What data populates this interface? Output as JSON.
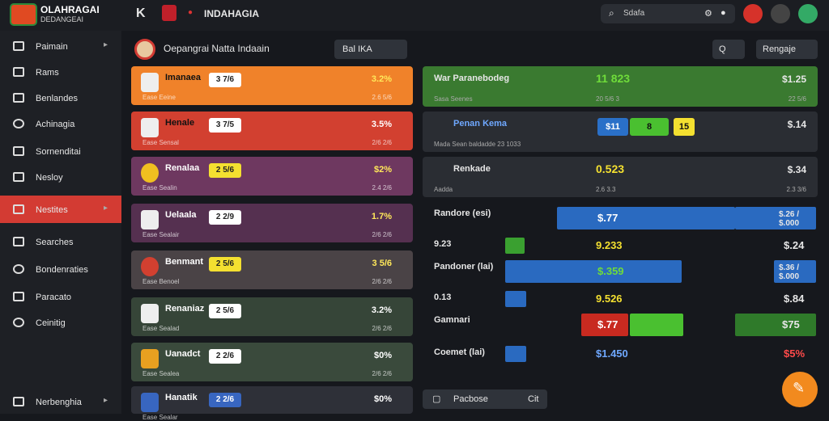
{
  "app": {
    "logo_title": "OLAHRAGAI",
    "logo_sub": "DEDANGEAI"
  },
  "topbar": {
    "back": "K",
    "title": "INDAHAGIA",
    "search_text": "Sdafa"
  },
  "sidebar": {
    "items": [
      {
        "label": "Paimain"
      },
      {
        "label": "Rams"
      },
      {
        "label": "Benlandes"
      },
      {
        "label": "Achinagia"
      },
      {
        "label": "Sornenditai"
      },
      {
        "label": "Nesloy"
      },
      {
        "label": "Nestites"
      },
      {
        "label": "Searches"
      },
      {
        "label": "Bondenraties"
      },
      {
        "label": "Paracato"
      },
      {
        "label": "Ceinitig"
      },
      {
        "label": "Nerbenghia"
      }
    ]
  },
  "header": {
    "title": "Oepangrai Natta Indaain",
    "btn": "Bal  IKA",
    "zoom": "Q",
    "save": "Rengaje"
  },
  "matches": [
    {
      "team": "Imanaea",
      "odd": "3 7/6",
      "val": "3.2%",
      "sub": "Ease  Eeine",
      "time": "2.6 5/6"
    },
    {
      "team": "Henale",
      "odd": "3 7/5",
      "val": "3.5%",
      "sub": "Ease  Sensal",
      "time": "2/6 2/6"
    },
    {
      "team": "Renalaa",
      "odd": "2 5/6",
      "val": "$2%",
      "sub": "Ease  Sealin",
      "time": "2.4 2/6"
    },
    {
      "team": "Uelaala",
      "odd": "2 2/9",
      "val": "1.7%",
      "sub": "Ease  Sealair",
      "time": "2/6 2/6"
    },
    {
      "team": "Benmant",
      "odd": "2 5/6",
      "val": "3 5/6",
      "sub": "Ease  Benoel",
      "time": "2/6 2/6"
    },
    {
      "team": "Renaniaz",
      "odd": "2 5/6",
      "val": "3.2%",
      "sub": "Ease  Sealad",
      "time": "2/6 2/6"
    },
    {
      "team": "Uanadct",
      "odd": "2 2/6",
      "val": "$0%",
      "sub": "Ease  Sealea",
      "time": "2/6 2/6"
    },
    {
      "team": "Hanatik",
      "odd": "2 2/6",
      "val": "$0%",
      "sub": "Ease  Sealar",
      "time": ""
    }
  ],
  "bets": [
    {
      "name": "War Paranebodeg",
      "main": "11 823",
      "price": "$1.25",
      "s1": "Sasa  Seenes",
      "s2": "20 5/6 3",
      "s3": "22 5/6"
    },
    {
      "name": "Penan Kema",
      "main": "",
      "price": "$.14",
      "s1": "Mada  Sean baldadde  23  1033",
      "s2": "",
      "s3": ""
    },
    {
      "name": "Renkade",
      "main": "0.523",
      "price": "$.34",
      "s1": "Aadda",
      "s2": "2.6 3.3",
      "s3": "2.3 3/6"
    }
  ],
  "chips": [
    "$11",
    "8",
    "15"
  ],
  "table": [
    {
      "c1": "Randore (esi)",
      "mid": "$.77",
      "r": "$.26 / $.000"
    },
    {
      "c1": "9.23",
      "mid": "9.233",
      "r": "$.24"
    },
    {
      "c1": "Pandoner (lai)",
      "mid": "$.359",
      "r": "$.36 / $.000"
    },
    {
      "c1": "0.13",
      "mid": "9.526",
      "r": "$.84"
    },
    {
      "c1": "Gamnari",
      "mid": "$.77",
      "r": "$75"
    },
    {
      "c1": "Coemet (lai)",
      "mid": "$1.450",
      "r": "$5%"
    }
  ],
  "bottom_bar": {
    "label": "Pacbose",
    "k": "Cit"
  }
}
